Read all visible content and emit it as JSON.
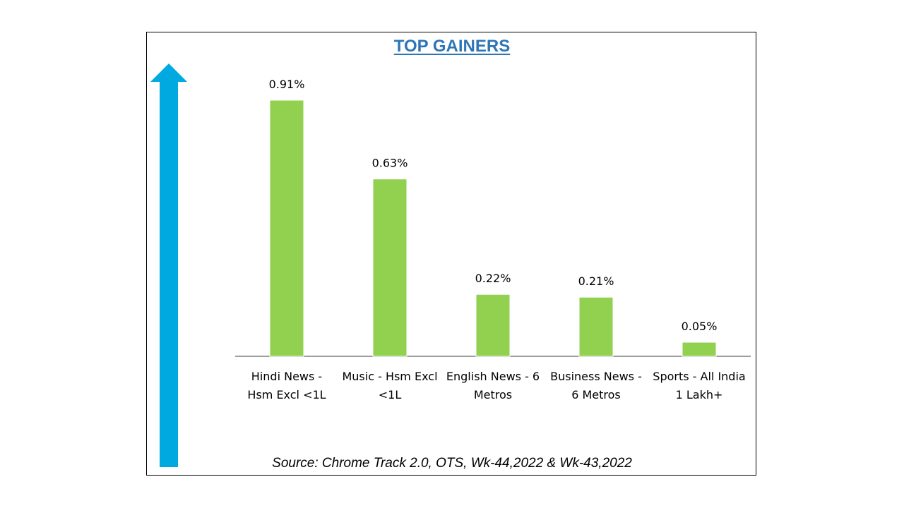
{
  "colors": {
    "bar": "#92D050",
    "arrow": "#00A9E0",
    "title": "#2E75B6",
    "axis": "#7F7F7F"
  },
  "icons": {
    "arrow": "up-arrow-icon"
  },
  "chart_data": {
    "type": "bar",
    "title": "TOP GAINERS",
    "source": "Source: Chrome Track 2.0, OTS, Wk-44,2022 & Wk-43,2022",
    "categories": [
      [
        "Hindi News -",
        "Hsm Excl <1L"
      ],
      [
        "Music - Hsm Excl",
        "<1L"
      ],
      [
        "English News - 6",
        "Metros"
      ],
      [
        "Business News -",
        "6 Metros"
      ],
      [
        "Sports - All India",
        "1 Lakh+"
      ]
    ],
    "values": [
      0.91,
      0.63,
      0.22,
      0.21,
      0.05
    ],
    "data_labels": [
      "0.91%",
      "0.63%",
      "0.22%",
      "0.21%",
      "0.05%"
    ],
    "ylim": [
      0,
      1
    ],
    "grid": false,
    "legend": "none"
  }
}
